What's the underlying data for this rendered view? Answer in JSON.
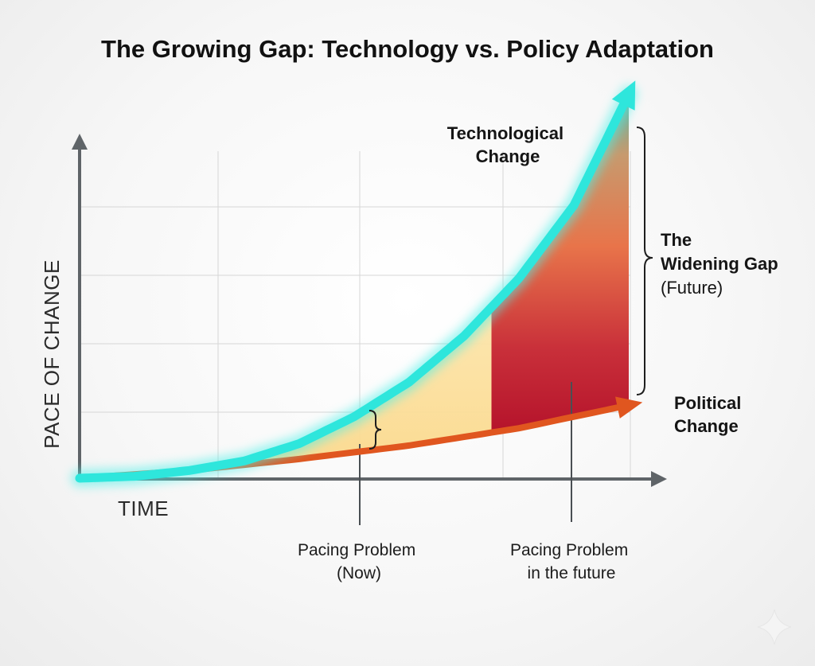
{
  "chart_data": {
    "type": "area",
    "title": "The Growing Gap: Technology vs. Policy Adaptation",
    "xlabel": "TIME",
    "ylabel": "PACE OF CHANGE",
    "xlim": [
      0,
      1
    ],
    "ylim": [
      0,
      1
    ],
    "grid": true,
    "series": [
      {
        "name": "Technological Change",
        "label_lines": [
          "Technological",
          "Change"
        ],
        "color": "#2ee6dc",
        "x": [
          0,
          0.1,
          0.2,
          0.3,
          0.4,
          0.5,
          0.6,
          0.7,
          0.8,
          0.9,
          1.0
        ],
        "y": [
          0,
          0.005,
          0.02,
          0.045,
          0.09,
          0.16,
          0.25,
          0.37,
          0.52,
          0.71,
          1.0
        ]
      },
      {
        "name": "Political Change",
        "label_lines": [
          "Political",
          "Change"
        ],
        "color": "#e0561f",
        "x": [
          0,
          0.2,
          0.4,
          0.6,
          0.8,
          1.0
        ],
        "y": [
          0,
          0.02,
          0.05,
          0.085,
          0.13,
          0.19
        ]
      }
    ],
    "regions": [
      {
        "name": "present-gap",
        "x_from": 0,
        "x_to": 0.75,
        "color": "#fbe3a6"
      },
      {
        "name": "future-gap",
        "x_from": 0.75,
        "x_to": 1.0,
        "color": "#c0243a"
      }
    ],
    "annotations": [
      {
        "id": "pacing-now",
        "lines": [
          "Pacing Problem",
          "(Now)"
        ],
        "x": 0.48
      },
      {
        "id": "pacing-future",
        "lines": [
          "Pacing Problem",
          "in the future"
        ],
        "x": 0.88
      },
      {
        "id": "widening-gap",
        "title": "The",
        "lines": [
          "Widening Gap",
          "(Future)"
        ],
        "x": 1.0
      }
    ],
    "colors": {
      "axis": "#5f6468",
      "grid": "#d6d6d6",
      "gap_top": "#5fb3a3",
      "gap_mid": "#e8744a",
      "gap_bottom": "#b5132b"
    }
  }
}
